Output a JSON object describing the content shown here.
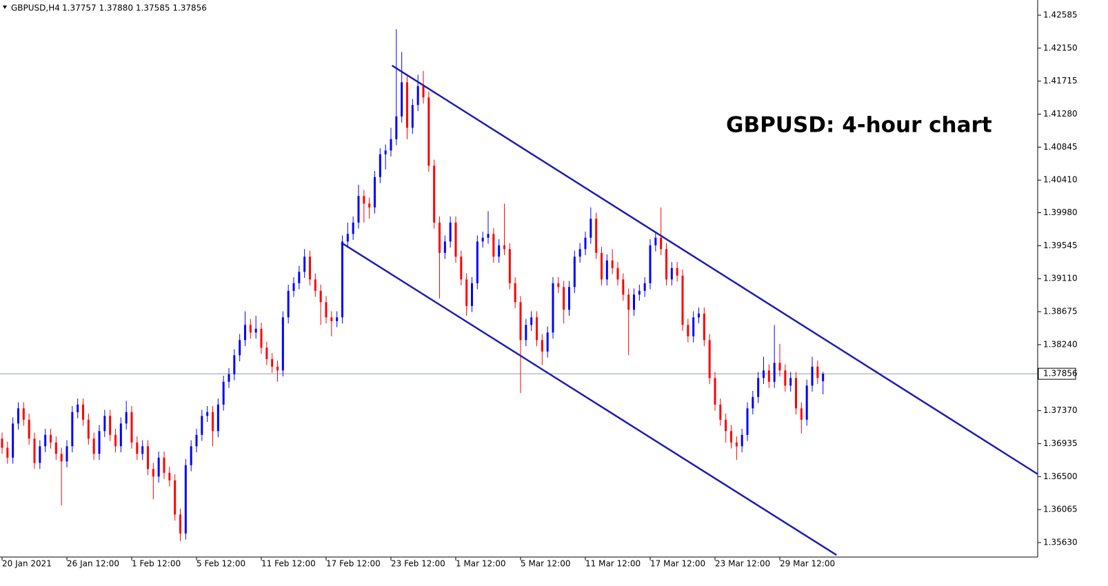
{
  "chart_data": {
    "type": "candlestick",
    "header": {
      "symbol": "GBPUSD,H4",
      "quote": "1.37757 1.37880 1.37585 1.37856"
    },
    "annotation": "GBPUSD: 4-hour chart",
    "up_color": "#0000ff",
    "down_color": "#ff0000",
    "ylim": [
      1.35439,
      1.42785
    ],
    "yticks": [
      1.42585,
      {
        "value": 1.4215,
        "label": "1.42150"
      },
      1.41715,
      {
        "value": 1.4128,
        "label": "1.41280"
      },
      1.40845,
      {
        "value": 1.4041,
        "label": "1.40410"
      },
      {
        "value": 1.3998,
        "label": "1.39980"
      },
      1.39545,
      {
        "value": 1.3911,
        "label": "1.39110"
      },
      1.38675,
      {
        "value": 1.3824,
        "label": "1.38240"
      },
      {
        "value": 1.3737,
        "label": "1.37370"
      },
      1.36935,
      {
        "value": 1.365,
        "label": "1.36500"
      },
      1.36065,
      {
        "value": 1.3563,
        "label": "1.35630"
      }
    ],
    "current_price": 1.37856,
    "trendlines": [
      {
        "x": [
          72.2,
          191.8
        ],
        "y": [
          1.41921,
          1.3653
        ]
      },
      {
        "x": [
          62.8,
          154.5
        ],
        "y": [
          1.39585,
          1.35466
        ]
      }
    ],
    "trendline_color": "#1c1cb4",
    "categories": [
      "20 Jan 2021",
      null,
      null,
      null,
      null,
      null,
      null,
      null,
      null,
      null,
      null,
      null,
      "26 Jan 12:00",
      null,
      null,
      null,
      null,
      null,
      null,
      null,
      null,
      null,
      null,
      null,
      "1 Feb 12:00",
      null,
      null,
      null,
      null,
      null,
      null,
      null,
      null,
      null,
      null,
      null,
      "5 Feb 12:00",
      null,
      null,
      null,
      null,
      null,
      null,
      null,
      null,
      null,
      null,
      null,
      "11 Feb 12:00",
      null,
      null,
      null,
      null,
      null,
      null,
      null,
      null,
      null,
      null,
      null,
      "17 Feb 12:00",
      null,
      null,
      null,
      null,
      null,
      null,
      null,
      null,
      null,
      null,
      null,
      "23 Feb 12:00",
      null,
      null,
      null,
      null,
      null,
      null,
      null,
      null,
      null,
      null,
      null,
      "1 Mar 12:00",
      null,
      null,
      null,
      null,
      null,
      null,
      null,
      null,
      null,
      null,
      null,
      "5 Mar 12:00",
      null,
      null,
      null,
      null,
      null,
      null,
      null,
      null,
      null,
      null,
      null,
      "11 Mar 12:00",
      null,
      null,
      null,
      null,
      null,
      null,
      null,
      null,
      null,
      null,
      null,
      "17 Mar 12:00",
      null,
      null,
      null,
      null,
      null,
      null,
      null,
      null,
      null,
      null,
      null,
      "23 Mar 12:00",
      null,
      null,
      null,
      null,
      null,
      null,
      null,
      null,
      null,
      null,
      null,
      "29 Mar 12:00",
      null,
      null,
      null,
      null,
      null,
      null,
      null,
      null
    ],
    "open": [
      1.37,
      1.3688,
      1.3675,
      1.372,
      1.374,
      1.3725,
      1.37,
      1.3668,
      1.369,
      1.3705,
      1.3695,
      1.368,
      1.367,
      1.369,
      1.3735,
      1.3745,
      1.3725,
      1.37,
      1.368,
      1.371,
      1.373,
      1.3705,
      1.369,
      1.372,
      1.3735,
      1.3695,
      1.368,
      1.369,
      1.366,
      1.365,
      1.3675,
      1.3655,
      1.3645,
      1.36,
      1.3575,
      1.3665,
      1.369,
      1.3705,
      1.373,
      1.3735,
      1.371,
      1.3745,
      1.3775,
      1.3785,
      1.381,
      1.383,
      1.385,
      1.384,
      1.3845,
      1.382,
      1.3805,
      1.3795,
      1.379,
      1.386,
      1.3895,
      1.3905,
      1.392,
      1.394,
      1.391,
      1.3895,
      1.388,
      1.386,
      1.3855,
      1.386,
      1.396,
      1.397,
      1.3985,
      1.402,
      1.401,
      1.4005,
      1.4045,
      1.4075,
      1.408,
      1.4095,
      1.4125,
      1.417,
      1.411,
      1.414,
      1.4165,
      1.415,
      1.406,
      1.3985,
      1.3945,
      1.396,
      1.3985,
      1.394,
      1.391,
      1.3875,
      1.3905,
      1.396,
      1.3965,
      1.397,
      1.394,
      1.3955,
      1.395,
      1.3905,
      1.388,
      1.383,
      1.385,
      1.386,
      1.383,
      1.3815,
      1.384,
      1.3905,
      1.39,
      1.387,
      1.39,
      1.394,
      1.395,
      1.3965,
      1.399,
      1.3945,
      1.391,
      1.3935,
      1.3925,
      1.391,
      1.389,
      1.387,
      1.389,
      1.3895,
      1.3905,
      1.3955,
      1.3965,
      1.395,
      1.391,
      1.3925,
      1.3915,
      1.385,
      1.3835,
      1.386,
      1.3865,
      1.383,
      1.378,
      1.3745,
      1.3725,
      1.371,
      1.3695,
      1.369,
      1.3705,
      1.374,
      1.3755,
      1.378,
      1.379,
      1.3775,
      1.38,
      1.379,
      1.377,
      1.378,
      1.374,
      1.3725,
      1.377,
      1.3795,
      1.37757
    ],
    "high": [
      1.3708,
      1.3696,
      1.3728,
      1.3748,
      1.3748,
      1.3733,
      1.3708,
      1.3698,
      1.3713,
      1.3713,
      1.3703,
      1.3688,
      1.3698,
      1.3743,
      1.3753,
      1.3753,
      1.3733,
      1.3708,
      1.3718,
      1.3738,
      1.3738,
      1.3713,
      1.3728,
      1.375,
      1.3743,
      1.3703,
      1.3698,
      1.3698,
      1.3668,
      1.3683,
      1.3683,
      1.3663,
      1.3653,
      1.3608,
      1.3673,
      1.3698,
      1.3713,
      1.3738,
      1.3743,
      1.3743,
      1.3753,
      1.3783,
      1.3793,
      1.3818,
      1.3838,
      1.3868,
      1.3858,
      1.3862,
      1.3853,
      1.3828,
      1.3813,
      1.3803,
      1.3868,
      1.3903,
      1.3913,
      1.3928,
      1.395,
      1.3948,
      1.3918,
      1.3903,
      1.3888,
      1.3868,
      1.3868,
      1.3968,
      1.3985,
      1.3993,
      1.4035,
      1.4028,
      1.4018,
      1.4053,
      1.4083,
      1.4088,
      1.411,
      1.424,
      1.421,
      1.4178,
      1.4148,
      1.418,
      1.4185,
      1.4158,
      1.4068,
      1.3993,
      1.3968,
      1.3993,
      1.3993,
      1.3948,
      1.3918,
      1.3913,
      1.3968,
      1.3973,
      1.4,
      1.3978,
      1.3963,
      1.401,
      1.3958,
      1.3913,
      1.3888,
      1.3858,
      1.3868,
      1.3868,
      1.3838,
      1.3848,
      1.3913,
      1.3913,
      1.3908,
      1.3908,
      1.3948,
      1.3958,
      1.3973,
      1.4005,
      1.3998,
      1.3953,
      1.3943,
      1.395,
      1.3933,
      1.3918,
      1.3898,
      1.3898,
      1.3903,
      1.3913,
      1.3963,
      1.3973,
      1.4005,
      1.3958,
      1.3933,
      1.3933,
      1.3923,
      1.3858,
      1.3868,
      1.3873,
      1.3873,
      1.3838,
      1.3788,
      1.3753,
      1.3733,
      1.3718,
      1.3703,
      1.3713,
      1.3748,
      1.3763,
      1.3788,
      1.3808,
      1.3798,
      1.385,
      1.3825,
      1.3798,
      1.3788,
      1.3788,
      1.3748,
      1.3778,
      1.3808,
      1.3803,
      1.3788
    ],
    "low": [
      1.368,
      1.3667,
      1.3667,
      1.3712,
      1.3717,
      1.3692,
      1.366,
      1.366,
      1.3682,
      1.3687,
      1.3672,
      1.3612,
      1.3662,
      1.3682,
      1.3727,
      1.3717,
      1.3692,
      1.3672,
      1.3672,
      1.3702,
      1.3697,
      1.3682,
      1.3682,
      1.3712,
      1.3687,
      1.3672,
      1.3672,
      1.3652,
      1.362,
      1.3642,
      1.3647,
      1.3637,
      1.3592,
      1.3565,
      1.3567,
      1.3657,
      1.3682,
      1.3697,
      1.3722,
      1.369,
      1.3702,
      1.3737,
      1.3767,
      1.3777,
      1.3802,
      1.3822,
      1.3832,
      1.3832,
      1.3812,
      1.3797,
      1.3787,
      1.3775,
      1.3782,
      1.3852,
      1.3887,
      1.3897,
      1.3912,
      1.3902,
      1.3887,
      1.385,
      1.3852,
      1.3835,
      1.3847,
      1.3852,
      1.3952,
      1.3962,
      1.3977,
      1.3985,
      1.399,
      1.3997,
      1.4037,
      1.4055,
      1.4072,
      1.4087,
      1.4117,
      1.4095,
      1.4102,
      1.4132,
      1.4142,
      1.4052,
      1.3977,
      1.3885,
      1.3937,
      1.3952,
      1.3932,
      1.3902,
      1.3862,
      1.3867,
      1.3897,
      1.3952,
      1.3957,
      1.3932,
      1.3932,
      1.3942,
      1.3897,
      1.3872,
      1.376,
      1.3822,
      1.3842,
      1.3822,
      1.3797,
      1.3807,
      1.3832,
      1.3892,
      1.3852,
      1.3862,
      1.3892,
      1.3932,
      1.3942,
      1.3957,
      1.3937,
      1.3902,
      1.3902,
      1.3917,
      1.3902,
      1.3882,
      1.381,
      1.3862,
      1.3882,
      1.3887,
      1.3897,
      1.3947,
      1.3942,
      1.3902,
      1.3902,
      1.3907,
      1.3842,
      1.3827,
      1.3827,
      1.3852,
      1.3822,
      1.3772,
      1.3737,
      1.3717,
      1.3695,
      1.3687,
      1.3672,
      1.3682,
      1.3697,
      1.3732,
      1.3747,
      1.3772,
      1.3767,
      1.3767,
      1.3782,
      1.3762,
      1.3762,
      1.3732,
      1.3707,
      1.3717,
      1.3762,
      1.3772,
      1.37585
    ],
    "close": [
      1.3688,
      1.3675,
      1.372,
      1.374,
      1.3725,
      1.37,
      1.3668,
      1.369,
      1.3705,
      1.3695,
      1.368,
      1.367,
      1.369,
      1.3735,
      1.3745,
      1.3725,
      1.37,
      1.368,
      1.371,
      1.373,
      1.3705,
      1.369,
      1.372,
      1.3735,
      1.3695,
      1.368,
      1.369,
      1.366,
      1.365,
      1.3675,
      1.3655,
      1.3645,
      1.36,
      1.3575,
      1.3665,
      1.369,
      1.3705,
      1.373,
      1.3735,
      1.371,
      1.3745,
      1.3775,
      1.3785,
      1.381,
      1.383,
      1.385,
      1.384,
      1.3845,
      1.382,
      1.3805,
      1.3795,
      1.379,
      1.386,
      1.3895,
      1.3905,
      1.392,
      1.394,
      1.391,
      1.3895,
      1.388,
      1.386,
      1.3855,
      1.386,
      1.396,
      1.397,
      1.3985,
      1.402,
      1.401,
      1.4005,
      1.4045,
      1.4075,
      1.408,
      1.4095,
      1.4125,
      1.417,
      1.411,
      1.414,
      1.4165,
      1.415,
      1.406,
      1.3985,
      1.3945,
      1.396,
      1.3985,
      1.394,
      1.391,
      1.3875,
      1.3905,
      1.396,
      1.3965,
      1.397,
      1.394,
      1.3955,
      1.395,
      1.3905,
      1.388,
      1.383,
      1.385,
      1.386,
      1.383,
      1.3815,
      1.384,
      1.3905,
      1.39,
      1.387,
      1.39,
      1.394,
      1.395,
      1.3965,
      1.399,
      1.3945,
      1.391,
      1.3935,
      1.3925,
      1.391,
      1.389,
      1.387,
      1.389,
      1.3895,
      1.3905,
      1.3955,
      1.3965,
      1.395,
      1.391,
      1.3925,
      1.3915,
      1.385,
      1.3835,
      1.386,
      1.3865,
      1.383,
      1.378,
      1.3745,
      1.3725,
      1.371,
      1.3695,
      1.369,
      1.3705,
      1.374,
      1.3755,
      1.378,
      1.379,
      1.3775,
      1.38,
      1.379,
      1.377,
      1.378,
      1.374,
      1.3725,
      1.377,
      1.3795,
      1.378,
      1.37856
    ]
  }
}
